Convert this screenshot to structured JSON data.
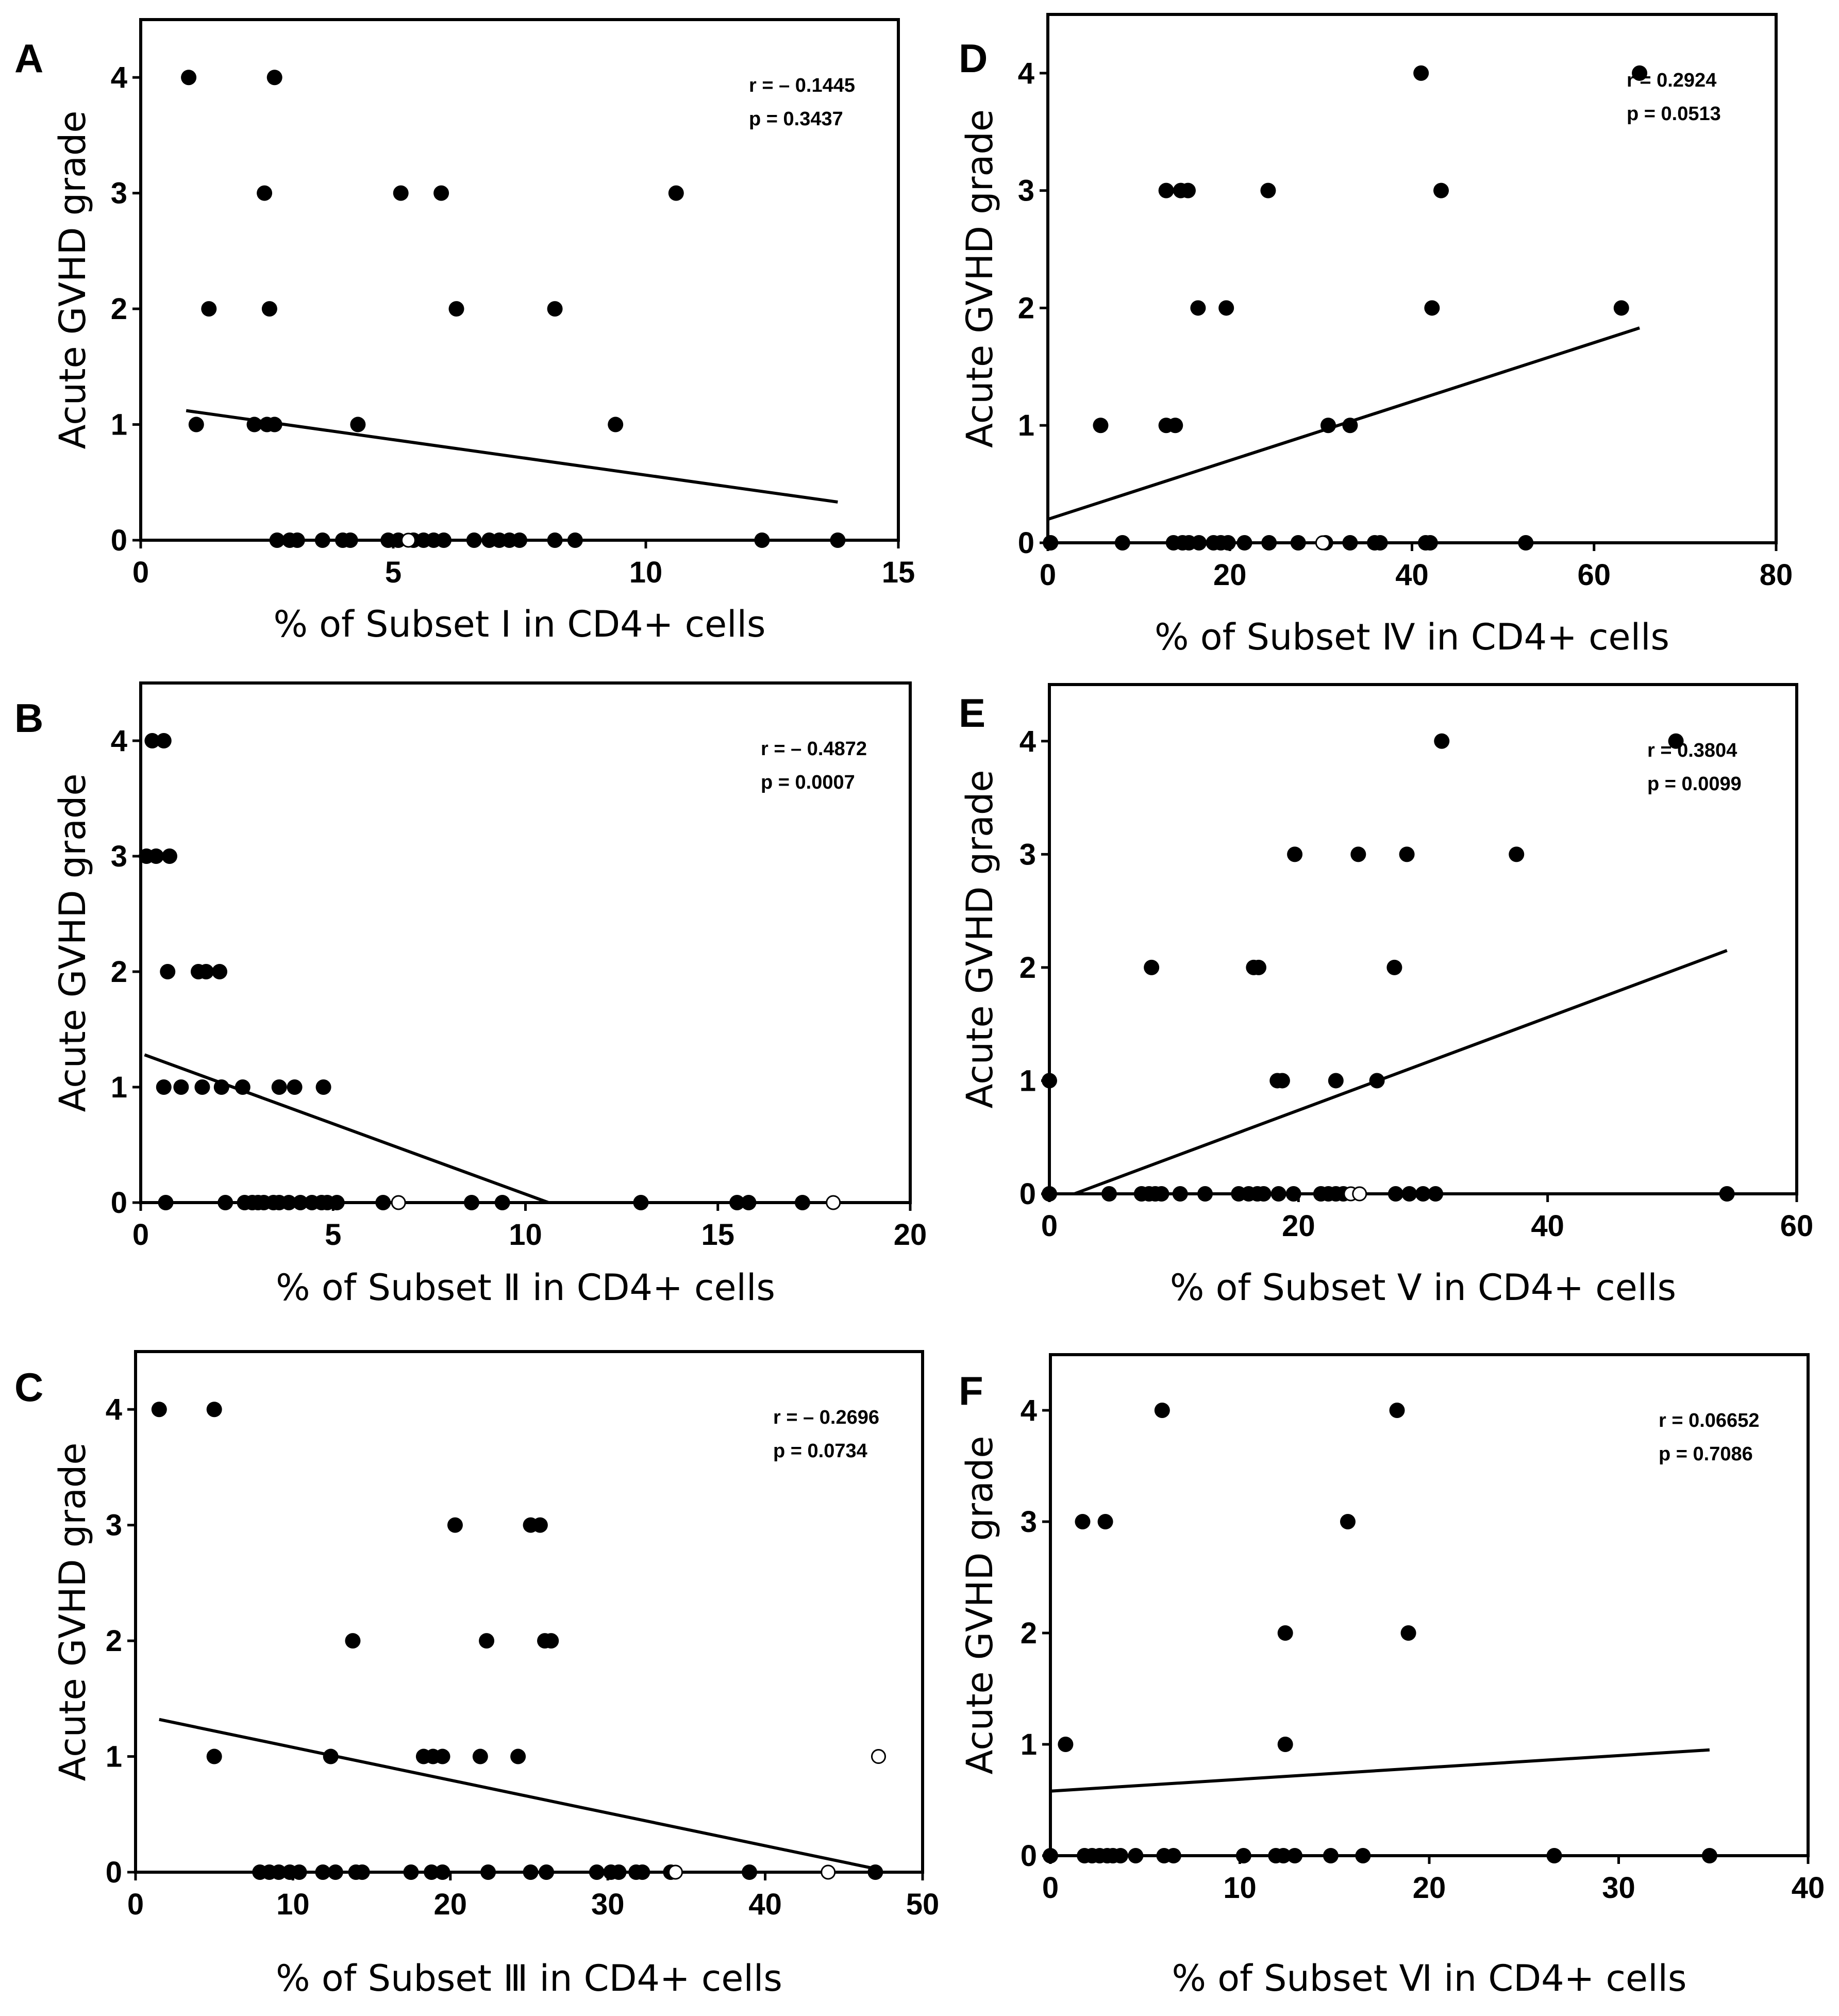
{
  "chart_data": [
    {
      "type": "scatter",
      "panel": "A",
      "xlabel": "% of Subset Ⅰ in CD4+ cells",
      "ylabel": "Acute GVHD grade",
      "xlim": [
        0,
        15
      ],
      "ylim": [
        0,
        4.5
      ],
      "xticks": [
        0,
        5,
        10,
        15
      ],
      "yticks": [
        0,
        1,
        2,
        3,
        4
      ],
      "stats": {
        "r": "r = – 0.1445",
        "p": "p = 0.3437"
      },
      "fit": {
        "x": [
          0.9,
          13.8
        ],
        "y": [
          1.12,
          0.33
        ]
      },
      "points": [
        [
          0.95,
          4
        ],
        [
          2.65,
          4
        ],
        [
          2.45,
          3
        ],
        [
          5.15,
          3
        ],
        [
          5.95,
          3
        ],
        [
          10.6,
          3
        ],
        [
          1.35,
          2
        ],
        [
          2.55,
          2
        ],
        [
          6.25,
          2
        ],
        [
          8.2,
          2
        ],
        [
          1.1,
          1
        ],
        [
          2.25,
          1
        ],
        [
          2.5,
          1
        ],
        [
          2.65,
          1
        ],
        [
          4.3,
          1
        ],
        [
          9.4,
          1
        ],
        [
          2.7,
          0
        ],
        [
          2.95,
          0
        ],
        [
          3.1,
          0
        ],
        [
          3.6,
          0
        ],
        [
          4.0,
          0
        ],
        [
          4.15,
          0
        ],
        [
          4.9,
          0
        ],
        [
          5.1,
          0
        ],
        [
          5.4,
          0
        ],
        [
          5.6,
          0
        ],
        [
          5.8,
          0
        ],
        [
          6.0,
          0
        ],
        [
          6.6,
          0
        ],
        [
          6.9,
          0
        ],
        [
          7.1,
          0
        ],
        [
          7.3,
          0
        ],
        [
          7.5,
          0
        ],
        [
          8.2,
          0
        ],
        [
          8.6,
          0
        ],
        [
          12.3,
          0
        ],
        [
          13.8,
          0
        ]
      ],
      "open_points": [
        [
          5.3,
          0
        ]
      ]
    },
    {
      "type": "scatter",
      "panel": "B",
      "xlabel": "% of Subset Ⅱ in CD4+ cells",
      "ylabel": "Acute GVHD grade",
      "xlim": [
        0,
        20
      ],
      "ylim": [
        0,
        4.5
      ],
      "xticks": [
        0,
        5,
        10,
        15,
        20
      ],
      "yticks": [
        0,
        1,
        2,
        3,
        4
      ],
      "stats": {
        "r": "r = – 0.4872",
        "p": "p = 0.0007"
      },
      "fit": {
        "x": [
          0.1,
          10.6
        ],
        "y": [
          1.28,
          0
        ]
      },
      "points": [
        [
          0.3,
          4
        ],
        [
          0.6,
          4
        ],
        [
          0.15,
          3
        ],
        [
          0.4,
          3
        ],
        [
          0.75,
          3
        ],
        [
          0.7,
          2
        ],
        [
          1.5,
          2
        ],
        [
          1.7,
          2
        ],
        [
          2.05,
          2
        ],
        [
          0.6,
          1
        ],
        [
          1.05,
          1
        ],
        [
          1.6,
          1
        ],
        [
          2.1,
          1
        ],
        [
          2.65,
          1
        ],
        [
          3.6,
          1
        ],
        [
          4.0,
          1
        ],
        [
          4.75,
          1
        ],
        [
          0.65,
          0
        ],
        [
          2.2,
          0
        ],
        [
          2.7,
          0
        ],
        [
          2.9,
          0
        ],
        [
          3.05,
          0
        ],
        [
          3.2,
          0
        ],
        [
          3.45,
          0
        ],
        [
          3.6,
          0
        ],
        [
          3.85,
          0
        ],
        [
          4.15,
          0
        ],
        [
          4.45,
          0
        ],
        [
          4.7,
          0
        ],
        [
          4.85,
          0
        ],
        [
          5.1,
          0
        ],
        [
          6.3,
          0
        ],
        [
          8.6,
          0
        ],
        [
          9.4,
          0
        ],
        [
          13.0,
          0
        ],
        [
          15.5,
          0
        ],
        [
          15.8,
          0
        ],
        [
          17.2,
          0
        ]
      ],
      "open_points": [
        [
          6.7,
          0
        ],
        [
          18.0,
          0
        ]
      ]
    },
    {
      "type": "scatter",
      "panel": "C",
      "xlabel": "% of Subset Ⅲ in CD4+ cells",
      "ylabel": "Acute GVHD grade",
      "xlim": [
        0,
        50
      ],
      "ylim": [
        0,
        4.5
      ],
      "xticks": [
        0,
        10,
        20,
        30,
        40,
        50
      ],
      "yticks": [
        0,
        1,
        2,
        3,
        4
      ],
      "stats": {
        "r": "r = – 0.2696",
        "p": "p = 0.0734"
      },
      "fit": {
        "x": [
          1.5,
          47
        ],
        "y": [
          1.32,
          0.03
        ]
      },
      "points": [
        [
          1.5,
          4
        ],
        [
          5,
          4
        ],
        [
          20.3,
          3
        ],
        [
          25.1,
          3
        ],
        [
          25.7,
          3
        ],
        [
          13.8,
          2
        ],
        [
          22.3,
          2
        ],
        [
          26,
          2
        ],
        [
          26.4,
          2
        ],
        [
          5,
          1
        ],
        [
          12.4,
          1
        ],
        [
          18.3,
          1
        ],
        [
          18.9,
          1
        ],
        [
          19.5,
          1
        ],
        [
          21.9,
          1
        ],
        [
          24.3,
          1
        ],
        [
          7.9,
          0
        ],
        [
          8.5,
          0
        ],
        [
          9.1,
          0
        ],
        [
          9.8,
          0
        ],
        [
          10.4,
          0
        ],
        [
          11.9,
          0
        ],
        [
          12.7,
          0
        ],
        [
          14,
          0
        ],
        [
          14.4,
          0
        ],
        [
          17.5,
          0
        ],
        [
          18.8,
          0
        ],
        [
          19.5,
          0
        ],
        [
          22.4,
          0
        ],
        [
          25.1,
          0
        ],
        [
          26.1,
          0
        ],
        [
          29.3,
          0
        ],
        [
          30.2,
          0
        ],
        [
          30.7,
          0
        ],
        [
          31.8,
          0
        ],
        [
          32.2,
          0
        ],
        [
          34,
          0
        ],
        [
          39,
          0
        ],
        [
          47,
          0
        ]
      ],
      "open_points": [
        [
          47.2,
          1
        ],
        [
          34.3,
          0
        ],
        [
          44,
          0
        ]
      ]
    },
    {
      "type": "scatter",
      "panel": "D",
      "xlabel": "% of Subset Ⅳ in CD4+ cells",
      "ylabel": "Acute GVHD grade",
      "xlim": [
        0,
        80
      ],
      "ylim": [
        0,
        4.5
      ],
      "xticks": [
        0,
        20,
        40,
        60,
        80
      ],
      "yticks": [
        0,
        1,
        2,
        3,
        4
      ],
      "stats": {
        "r": "r = 0.2924",
        "p": "p = 0.0513"
      },
      "fit": {
        "x": [
          0,
          65
        ],
        "y": [
          0.2,
          1.83
        ]
      },
      "points": [
        [
          41,
          4
        ],
        [
          65,
          4
        ],
        [
          13,
          3
        ],
        [
          14.6,
          3
        ],
        [
          15.4,
          3
        ],
        [
          24.2,
          3
        ],
        [
          43.2,
          3
        ],
        [
          16.5,
          2
        ],
        [
          19.6,
          2
        ],
        [
          42.2,
          2
        ],
        [
          63,
          2
        ],
        [
          5.8,
          1
        ],
        [
          13,
          1
        ],
        [
          14,
          1
        ],
        [
          30.8,
          1
        ],
        [
          33.2,
          1
        ],
        [
          0.3,
          0
        ],
        [
          8.2,
          0
        ],
        [
          13.8,
          0
        ],
        [
          14.8,
          0
        ],
        [
          15.5,
          0
        ],
        [
          16.6,
          0
        ],
        [
          18.2,
          0
        ],
        [
          19,
          0
        ],
        [
          19.8,
          0
        ],
        [
          21.6,
          0
        ],
        [
          24.3,
          0
        ],
        [
          27.5,
          0
        ],
        [
          30.5,
          0
        ],
        [
          33.2,
          0
        ],
        [
          35.9,
          0
        ],
        [
          36.5,
          0
        ],
        [
          41.5,
          0
        ],
        [
          42,
          0
        ],
        [
          52.5,
          0
        ]
      ],
      "open_points": [
        [
          30.2,
          0
        ]
      ]
    },
    {
      "type": "scatter",
      "panel": "E",
      "xlabel": "% of Subset Ⅴ in CD4+ cells",
      "ylabel": "Acute GVHD grade",
      "xlim": [
        0,
        60
      ],
      "ylim": [
        0,
        4.5
      ],
      "xticks": [
        0,
        20,
        40,
        60
      ],
      "yticks": [
        0,
        1,
        2,
        3,
        4
      ],
      "stats": {
        "r": "r = 0.3804",
        "p": "p = 0.0099"
      },
      "fit": {
        "x": [
          2,
          54.4
        ],
        "y": [
          0,
          2.15
        ]
      },
      "points": [
        [
          31.5,
          4
        ],
        [
          50.3,
          4
        ],
        [
          19.7,
          3
        ],
        [
          24.8,
          3
        ],
        [
          28.7,
          3
        ],
        [
          37.5,
          3
        ],
        [
          8.2,
          2
        ],
        [
          16.4,
          2
        ],
        [
          16.8,
          2
        ],
        [
          27.7,
          2
        ],
        [
          0,
          1
        ],
        [
          18.3,
          1
        ],
        [
          18.7,
          1
        ],
        [
          23,
          1
        ],
        [
          26.3,
          1
        ],
        [
          0,
          0
        ],
        [
          4.8,
          0
        ],
        [
          7.4,
          0
        ],
        [
          8.0,
          0
        ],
        [
          8.5,
          0
        ],
        [
          9.0,
          0
        ],
        [
          10.5,
          0
        ],
        [
          12.5,
          0
        ],
        [
          15.2,
          0
        ],
        [
          16.0,
          0
        ],
        [
          16.7,
          0
        ],
        [
          17.2,
          0
        ],
        [
          18.4,
          0
        ],
        [
          19.6,
          0
        ],
        [
          21.8,
          0
        ],
        [
          22.4,
          0
        ],
        [
          23.0,
          0
        ],
        [
          23.6,
          0
        ],
        [
          27.8,
          0
        ],
        [
          28.9,
          0
        ],
        [
          30.0,
          0
        ],
        [
          31.0,
          0
        ],
        [
          54.4,
          0
        ]
      ],
      "open_points": [
        [
          24.2,
          0
        ],
        [
          24.9,
          0
        ]
      ]
    },
    {
      "type": "scatter",
      "panel": "F",
      "xlabel": "% of Subset Ⅵ in CD4+ cells",
      "ylabel": "Acute GVHD grade",
      "xlim": [
        0,
        40
      ],
      "ylim": [
        0,
        4.5
      ],
      "xticks": [
        0,
        10,
        20,
        30,
        40
      ],
      "yticks": [
        0,
        1,
        2,
        3,
        4
      ],
      "stats": {
        "r": "r = 0.06652",
        "p": "p = 0.7086"
      },
      "fit": {
        "x": [
          0,
          34.8
        ],
        "y": [
          0.58,
          0.95
        ]
      },
      "points": [
        [
          5.9,
          4
        ],
        [
          18.3,
          4
        ],
        [
          1.7,
          3
        ],
        [
          2.9,
          3
        ],
        [
          15.7,
          3
        ],
        [
          12.4,
          2
        ],
        [
          18.9,
          2
        ],
        [
          0.8,
          1
        ],
        [
          12.4,
          1
        ],
        [
          0,
          0
        ],
        [
          1.8,
          0
        ],
        [
          2.2,
          0
        ],
        [
          2.6,
          0
        ],
        [
          3.0,
          0
        ],
        [
          3.3,
          0
        ],
        [
          3.7,
          0
        ],
        [
          4.5,
          0
        ],
        [
          6.0,
          0
        ],
        [
          6.5,
          0
        ],
        [
          10.2,
          0
        ],
        [
          11.9,
          0
        ],
        [
          12.3,
          0
        ],
        [
          12.9,
          0
        ],
        [
          14.8,
          0
        ],
        [
          16.5,
          0
        ],
        [
          26.6,
          0
        ],
        [
          34.8,
          0
        ]
      ],
      "open_points": []
    }
  ]
}
